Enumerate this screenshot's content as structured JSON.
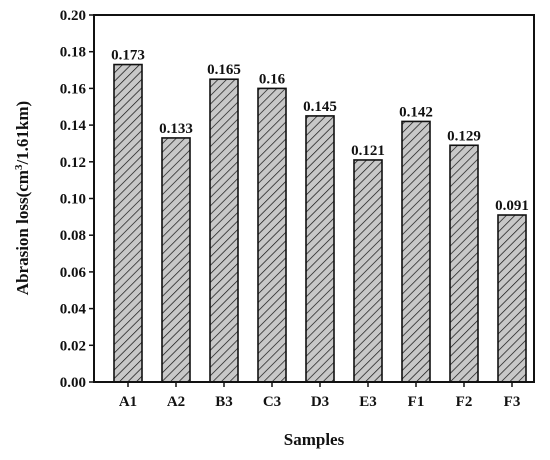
{
  "chart_data": {
    "type": "bar",
    "categories": [
      "A1",
      "A2",
      "B3",
      "C3",
      "D3",
      "E3",
      "F1",
      "F2",
      "F3"
    ],
    "values": [
      0.173,
      0.133,
      0.165,
      0.16,
      0.145,
      0.121,
      0.142,
      0.129,
      0.091
    ],
    "value_labels": [
      "0.173",
      "0.133",
      "0.165",
      "0.16",
      "0.145",
      "0.121",
      "0.142",
      "0.129",
      "0.091"
    ],
    "xlabel": "Samples",
    "ylabel_main": "Abrasion loss(cm",
    "ylabel_sup": "3",
    "ylabel_tail": "/1.61km)",
    "ylim": [
      0,
      0.2
    ],
    "yticks": [
      "0.00",
      "0.02",
      "0.04",
      "0.06",
      "0.08",
      "0.10",
      "0.12",
      "0.14",
      "0.16",
      "0.18",
      "0.20"
    ],
    "grid": false,
    "bar_fill": "#c8c8c8",
    "bar_pattern": "diagonal-hatch",
    "bar_edge": "#111111"
  }
}
